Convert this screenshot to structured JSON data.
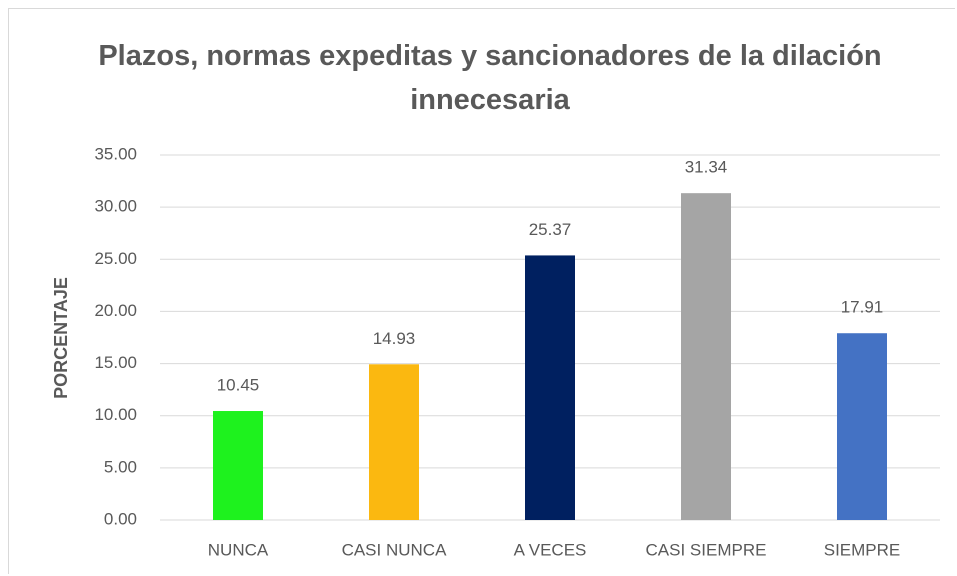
{
  "chart_data": {
    "type": "bar",
    "title": "Plazos, normas expeditas y sancionadores de la dilación innecesaria",
    "y_label": "PORCENTAJE",
    "categories": [
      "NUNCA",
      "CASI NUNCA",
      "A VECES",
      "CASI SIEMPRE",
      "SIEMPRE"
    ],
    "values": [
      10.45,
      14.93,
      25.37,
      31.34,
      17.91
    ],
    "colors": [
      "#1ef21e",
      "#fbb810",
      "#002060",
      "#a5a5a5",
      "#4472c4"
    ],
    "ylim": [
      0,
      35
    ],
    "yticks": [
      {
        "value": 0,
        "label": "0.00"
      },
      {
        "value": 5,
        "label": "5.00"
      },
      {
        "value": 10,
        "label": "10.00"
      },
      {
        "value": 15,
        "label": "15.00"
      },
      {
        "value": 20,
        "label": "20.00"
      },
      {
        "value": 25,
        "label": "25.00"
      },
      {
        "value": 30,
        "label": "30.00"
      },
      {
        "value": 35,
        "label": "35.00"
      }
    ],
    "grid": true
  }
}
